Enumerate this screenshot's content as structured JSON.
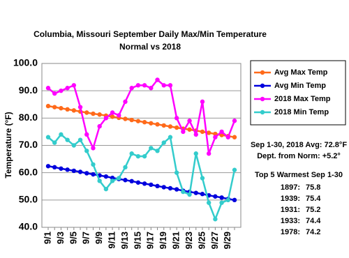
{
  "chart_data": {
    "type": "line",
    "title": "Columbia, Missouri September Daily Max/Min Temperature",
    "subtitle": "Normal vs 2018",
    "y_label": "Temperature (°F)",
    "categories": [
      "9/1",
      null,
      "9/3",
      null,
      "9/5",
      null,
      "9/7",
      null,
      "9/9",
      null,
      "9/11",
      null,
      "9/13",
      null,
      "9/15",
      null,
      "9/17",
      null,
      "9/19",
      null,
      "9/21",
      null,
      "9/23",
      null,
      "9/25",
      null,
      "9/27",
      null,
      "9/29",
      null
    ],
    "series": [
      {
        "name": "Avg Max Temp",
        "color": "#ff6a1a",
        "values": [
          84.4,
          84.0,
          83.6,
          83.2,
          82.8,
          82.4,
          82.0,
          81.6,
          81.3,
          80.9,
          80.5,
          80.1,
          79.7,
          79.3,
          78.9,
          78.5,
          78.1,
          77.7,
          77.3,
          76.9,
          76.5,
          76.1,
          75.8,
          75.4,
          75.0,
          74.6,
          74.2,
          73.8,
          73.4,
          73.0
        ]
      },
      {
        "name": "Avg Min Temp",
        "color": "#0000dd",
        "values": [
          62.4,
          62.0,
          61.5,
          61.1,
          60.7,
          60.3,
          59.8,
          59.4,
          59.0,
          58.6,
          58.1,
          57.7,
          57.3,
          56.9,
          56.4,
          56.0,
          55.6,
          55.1,
          54.7,
          54.3,
          53.9,
          53.4,
          53.0,
          52.6,
          52.2,
          51.7,
          51.3,
          50.9,
          50.4,
          50.0
        ]
      },
      {
        "name": "2018 Max Temp",
        "color": "#ff00ff",
        "values": [
          91,
          89,
          90,
          91,
          92,
          84,
          74,
          69,
          77,
          80,
          82,
          81,
          86,
          91,
          92,
          92,
          91,
          94,
          92,
          92,
          80,
          75,
          79,
          74,
          86,
          67,
          73,
          75,
          73,
          79
        ]
      },
      {
        "name": "2018 Min Temp",
        "color": "#33cccc",
        "values": [
          73,
          71,
          74,
          72,
          70,
          72,
          68,
          63,
          57,
          54,
          57,
          58,
          62,
          67,
          66,
          66,
          69,
          68,
          71,
          73,
          60,
          53,
          52,
          67,
          58,
          49,
          43,
          49,
          50,
          61
        ]
      }
    ],
    "ylim": [
      40,
      100
    ],
    "yticks": [
      {
        "value": 40,
        "label": "40.0"
      },
      {
        "value": 50,
        "label": "50.0"
      },
      {
        "value": 60,
        "label": "60.0"
      },
      {
        "value": 70,
        "label": "70.0"
      },
      {
        "value": 80,
        "label": "80.0"
      },
      {
        "value": 90,
        "label": "90.0"
      },
      {
        "value": 100,
        "label": "100.0"
      }
    ],
    "grid": true,
    "legend": "right",
    "stats": [
      "Sep 1-30, 2018 Avg: 72.8°F",
      "Dept. from Norm: +5.2°"
    ],
    "top5_title": "Top 5 Warmest Sep 1-30",
    "top5": [
      {
        "year": "1897:",
        "value": 75.8
      },
      {
        "year": "1939:",
        "value": 75.4
      },
      {
        "year": "1931:",
        "value": 75.2
      },
      {
        "year": "1933:",
        "value": 74.4
      },
      {
        "year": "1978:",
        "value": 74.2
      }
    ]
  }
}
